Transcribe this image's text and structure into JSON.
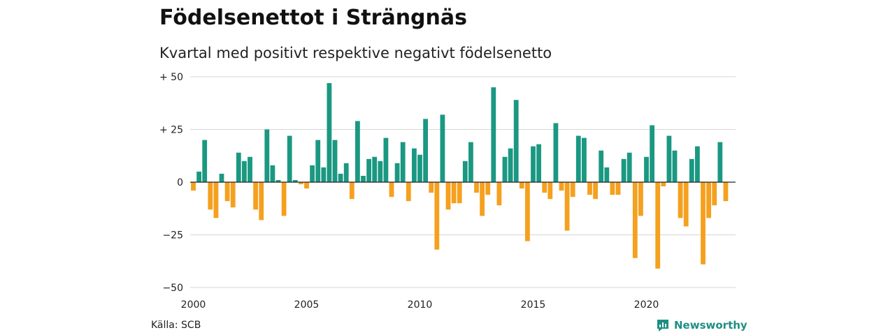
{
  "title": "Födelsenettot i Strängnäs",
  "subtitle": "Kvartal med positivt respektive negativt födelsenetto",
  "source": "Källa: SCB",
  "brand": "Newsworthy",
  "colors": {
    "positive": "#1a9882",
    "negative": "#f5a01e",
    "grid": "#d6d6d6",
    "brand": "#1e8f82"
  },
  "chart_data": {
    "type": "bar",
    "y_ticks": [
      {
        "value": 50,
        "label": "+ 50"
      },
      {
        "value": 25,
        "label": "+ 25"
      },
      {
        "value": 0,
        "label": "0"
      },
      {
        "value": -25,
        "label": "−25"
      },
      {
        "value": -50,
        "label": "−50"
      }
    ],
    "x_ticks": [
      "2000",
      "2005",
      "2010",
      "2015",
      "2020"
    ],
    "ylim": [
      -50,
      50
    ],
    "grid": true,
    "start_year": 2000,
    "start_quarter": 1,
    "values": [
      -4,
      5,
      20,
      -13,
      -17,
      4,
      -9,
      -12,
      14,
      10,
      12,
      -13,
      -18,
      25,
      8,
      1,
      -16,
      22,
      1,
      -1,
      -3,
      8,
      20,
      7,
      47,
      20,
      4,
      9,
      -8,
      29,
      3,
      11,
      12,
      10,
      21,
      -7,
      9,
      19,
      -9,
      16,
      13,
      30,
      -5,
      -32,
      32,
      -13,
      -10,
      -10,
      10,
      19,
      -5,
      -16,
      -6,
      45,
      -11,
      12,
      16,
      39,
      -3,
      -28,
      17,
      18,
      -5,
      -8,
      28,
      -4,
      -23,
      -7,
      22,
      21,
      -6,
      -8,
      15,
      7,
      -6,
      -6,
      11,
      14,
      -36,
      -16,
      12,
      27,
      -41,
      -2,
      22,
      15,
      -17,
      -21,
      11,
      17,
      -39,
      -17,
      -11,
      19,
      -9
    ]
  }
}
